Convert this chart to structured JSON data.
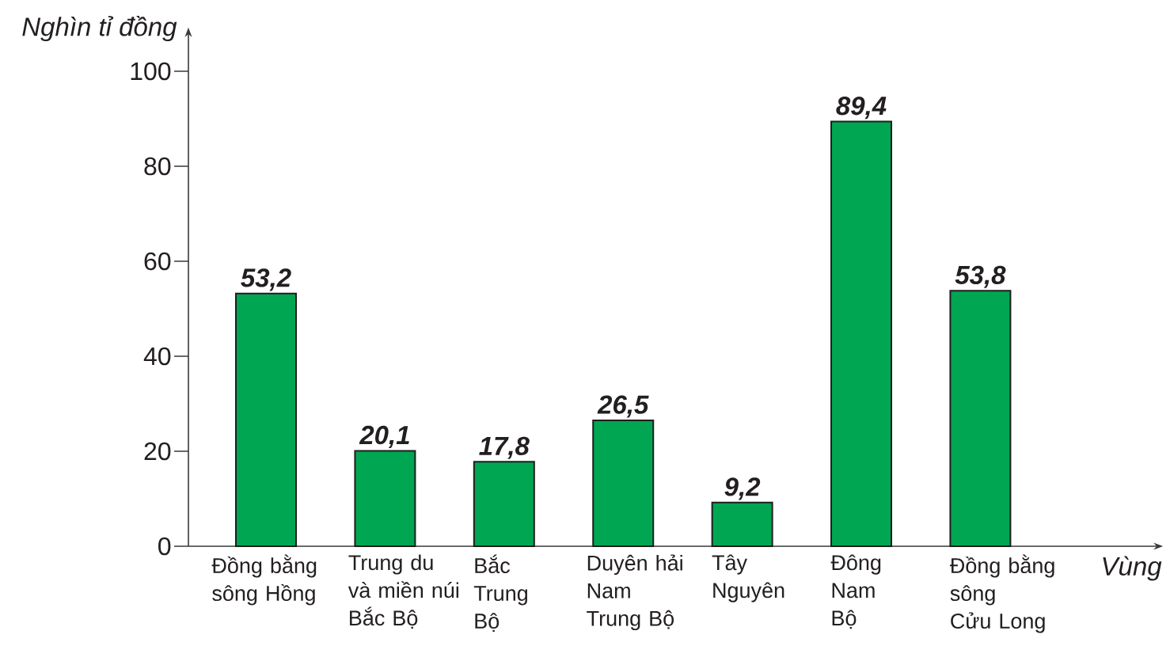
{
  "chart_data": {
    "type": "bar",
    "xlabel": "Vùng",
    "ylabel": "Nghìn tỉ đồng",
    "categories": [
      "Đồng bằng\nsông Hồng",
      "Trung du\nvà miền núi\nBắc Bộ",
      "Bắc\nTrung\nBộ",
      "Duyên hải\nNam\nTrung Bộ",
      "Tây\nNguyên",
      "Đông\nNam\nBộ",
      "Đồng bằng\nsông\nCửu Long"
    ],
    "values": [
      53.2,
      20.1,
      17.8,
      26.5,
      9.2,
      89.4,
      53.8
    ],
    "value_labels": [
      "53,2",
      "20,1",
      "17,8",
      "26,5",
      "9,2",
      "89,4",
      "53,8"
    ],
    "color": "#00a651",
    "ylim": [
      0,
      108
    ],
    "yticks": [
      0,
      20,
      40,
      60,
      80,
      100
    ]
  }
}
